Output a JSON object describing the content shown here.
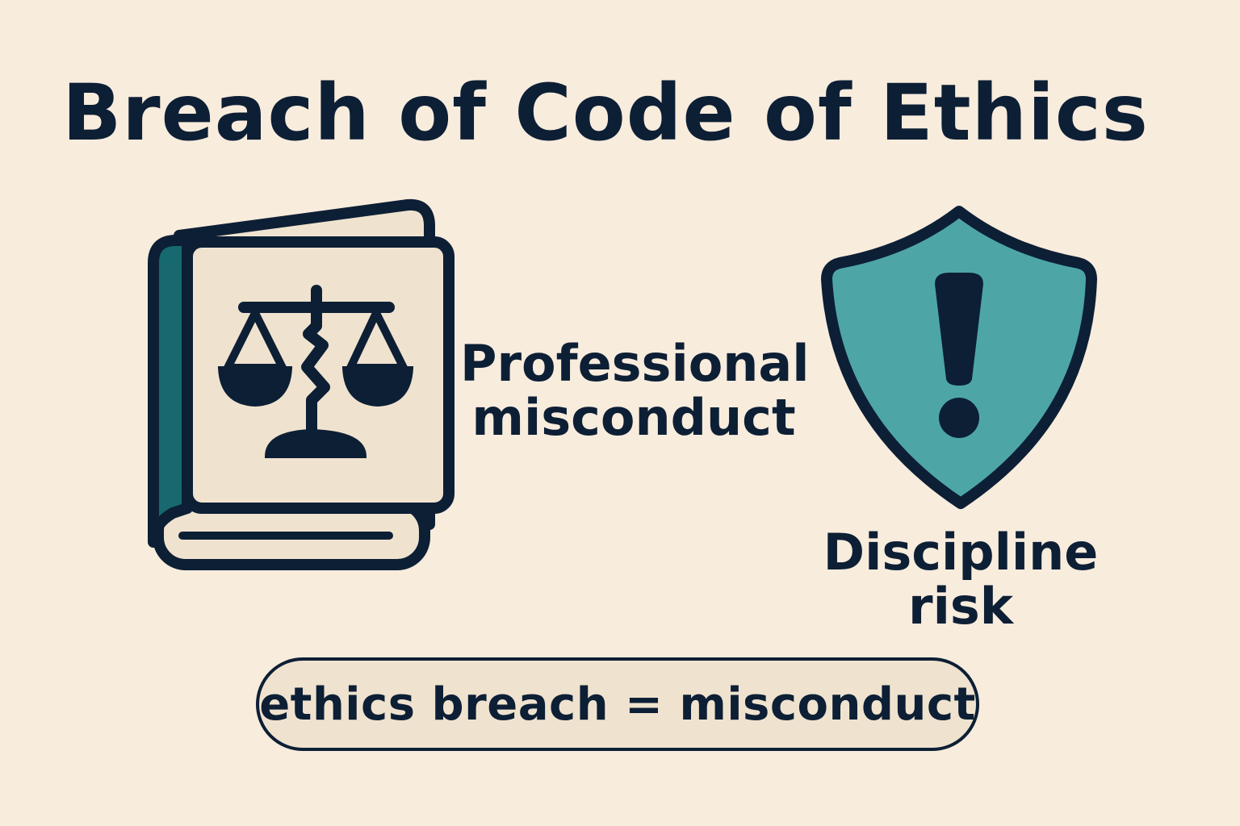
{
  "title": "Breach of Code of Ethics",
  "labels": {
    "professional": "Professional misconduct",
    "discipline": "Discipline risk"
  },
  "equation": "ethics breach = misconduct",
  "icons": {
    "book": "code-book-icon",
    "scales": "broken-scales-icon",
    "shield": "warning-shield-icon"
  },
  "colors": {
    "background": "#f8ecdd",
    "ink": "#0d1f35",
    "teal_dark": "#17696f",
    "teal_light": "#4da6a5",
    "paper": "#efe3cf"
  }
}
